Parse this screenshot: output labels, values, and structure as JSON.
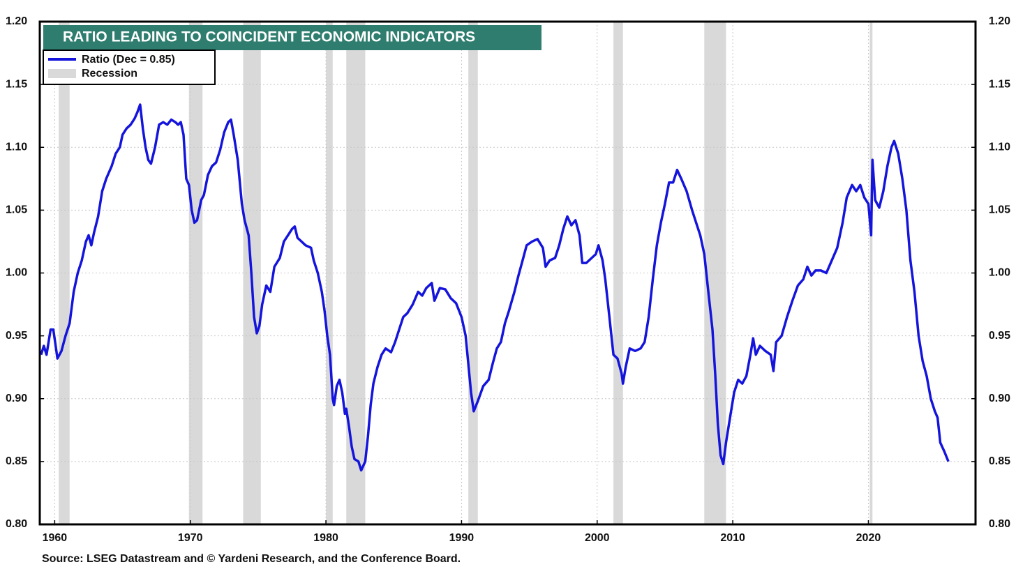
{
  "chart_data": {
    "type": "line",
    "title": "RATIO LEADING TO COINCIDENT ECONOMIC INDICATORS",
    "source": "Source: LSEG Datastream and © Yardeni Research, and the Conference Board.",
    "xlim": [
      1958.9,
      2027.9
    ],
    "xticks": [
      1960,
      1970,
      1980,
      1990,
      2000,
      2010,
      2020
    ],
    "ylim": [
      0.8,
      1.2
    ],
    "yticks": [
      {
        "value": 0.8,
        "label": "0.80"
      },
      {
        "value": 0.85,
        "label": "0.85"
      },
      {
        "value": 0.9,
        "label": "0.90"
      },
      {
        "value": 0.95,
        "label": "0.95"
      },
      {
        "value": 1.0,
        "label": "1.00"
      },
      {
        "value": 1.05,
        "label": "1.05"
      },
      {
        "value": 1.1,
        "label": "1.10"
      },
      {
        "value": 1.15,
        "label": "1.15"
      },
      {
        "value": 1.2,
        "label": "1.20"
      }
    ],
    "grid": true,
    "recession_name": "Recession",
    "recession_color": "#d9d9d9",
    "recessions": [
      [
        1960.3,
        1961.1
      ],
      [
        1969.9,
        1970.9
      ],
      [
        1973.9,
        1975.2
      ],
      [
        1980.0,
        1980.5
      ],
      [
        1981.5,
        1982.9
      ],
      [
        1990.5,
        1991.2
      ],
      [
        2001.2,
        2001.9
      ],
      [
        2007.9,
        2009.5
      ],
      [
        2020.1,
        2020.3
      ]
    ],
    "x": [
      1959.0,
      1959.2,
      1959.4,
      1959.7,
      1959.9,
      1960.1,
      1960.2,
      1960.5,
      1960.8,
      1961.1,
      1961.4,
      1961.7,
      1962.0,
      1962.3,
      1962.5,
      1962.7,
      1962.9,
      1963.2,
      1963.5,
      1963.8,
      1964.2,
      1964.5,
      1964.8,
      1965.0,
      1965.3,
      1965.6,
      1965.9,
      1966.1,
      1966.3,
      1966.5,
      1966.7,
      1966.9,
      1967.1,
      1967.4,
      1967.7,
      1968.0,
      1968.3,
      1968.6,
      1968.9,
      1969.1,
      1969.3,
      1969.5,
      1969.7,
      1969.9,
      1970.1,
      1970.3,
      1970.5,
      1970.8,
      1971.0,
      1971.3,
      1971.6,
      1971.9,
      1972.2,
      1972.5,
      1972.8,
      1973.0,
      1973.2,
      1973.5,
      1973.8,
      1974.0,
      1974.3,
      1974.5,
      1974.7,
      1974.9,
      1975.1,
      1975.3,
      1975.6,
      1975.9,
      1976.2,
      1976.6,
      1976.9,
      1977.2,
      1977.5,
      1977.7,
      1977.9,
      1978.2,
      1978.5,
      1978.9,
      1979.1,
      1979.4,
      1979.7,
      1979.9,
      1980.1,
      1980.3,
      1980.5,
      1980.6,
      1980.8,
      1981.0,
      1981.2,
      1981.4,
      1981.5,
      1981.7,
      1981.9,
      1982.1,
      1982.4,
      1982.6,
      1982.9,
      1983.1,
      1983.3,
      1983.5,
      1983.8,
      1984.1,
      1984.4,
      1984.8,
      1985.1,
      1985.4,
      1985.7,
      1986.0,
      1986.4,
      1986.8,
      1987.1,
      1987.4,
      1987.8,
      1988.0,
      1988.4,
      1988.8,
      1989.2,
      1989.6,
      1990.0,
      1990.3,
      1990.5,
      1990.7,
      1990.9,
      1991.2,
      1991.6,
      1992.0,
      1992.3,
      1992.6,
      1992.9,
      1993.2,
      1993.5,
      1993.9,
      1994.2,
      1994.5,
      1994.8,
      1995.2,
      1995.6,
      1996.0,
      1996.2,
      1996.5,
      1996.9,
      1997.2,
      1997.5,
      1997.8,
      1998.1,
      1998.4,
      1998.7,
      1998.9,
      1999.2,
      1999.6,
      1999.9,
      2000.1,
      2000.4,
      2000.6,
      2000.9,
      2001.2,
      2001.5,
      2001.8,
      2001.9,
      2002.1,
      2002.4,
      2002.8,
      2003.2,
      2003.5,
      2003.8,
      2004.1,
      2004.4,
      2004.7,
      2005.0,
      2005.3,
      2005.6,
      2005.9,
      2006.2,
      2006.6,
      2007.0,
      2007.3,
      2007.6,
      2007.9,
      2008.2,
      2008.5,
      2008.7,
      2008.9,
      2009.1,
      2009.3,
      2009.5,
      2009.8,
      2010.1,
      2010.4,
      2010.7,
      2011.0,
      2011.3,
      2011.5,
      2011.7,
      2012.0,
      2012.4,
      2012.8,
      2013.0,
      2013.2,
      2013.6,
      2014.0,
      2014.4,
      2014.8,
      2015.2,
      2015.5,
      2015.8,
      2016.1,
      2016.5,
      2016.9,
      2017.3,
      2017.7,
      2018.1,
      2018.4,
      2018.8,
      2019.1,
      2019.4,
      2019.7,
      2020.0,
      2020.2,
      2020.3,
      2020.5,
      2020.8,
      2021.1,
      2021.4,
      2021.7,
      2021.9,
      2022.2,
      2022.5,
      2022.8,
      2023.1,
      2023.4,
      2023.7,
      2024.0,
      2024.3,
      2024.6,
      2024.9,
      2025.1,
      2025.3,
      2025.6,
      2025.9
    ],
    "series": [
      {
        "name": "Ratio  (Dec = 0.85)",
        "color": "#1414dc",
        "values": [
          0.935,
          0.942,
          0.935,
          0.955,
          0.955,
          0.94,
          0.932,
          0.938,
          0.95,
          0.96,
          0.985,
          1.0,
          1.01,
          1.025,
          1.03,
          1.022,
          1.032,
          1.045,
          1.065,
          1.075,
          1.085,
          1.095,
          1.1,
          1.11,
          1.115,
          1.118,
          1.123,
          1.128,
          1.134,
          1.115,
          1.1,
          1.09,
          1.087,
          1.1,
          1.118,
          1.12,
          1.118,
          1.122,
          1.12,
          1.118,
          1.12,
          1.11,
          1.075,
          1.07,
          1.05,
          1.04,
          1.042,
          1.058,
          1.062,
          1.078,
          1.085,
          1.088,
          1.098,
          1.112,
          1.12,
          1.122,
          1.11,
          1.09,
          1.055,
          1.042,
          1.03,
          1.0,
          0.965,
          0.952,
          0.958,
          0.975,
          0.99,
          0.985,
          1.005,
          1.012,
          1.025,
          1.03,
          1.035,
          1.037,
          1.028,
          1.025,
          1.022,
          1.02,
          1.01,
          1.0,
          0.985,
          0.97,
          0.95,
          0.935,
          0.9,
          0.895,
          0.91,
          0.915,
          0.905,
          0.888,
          0.892,
          0.878,
          0.862,
          0.852,
          0.85,
          0.843,
          0.85,
          0.87,
          0.895,
          0.912,
          0.925,
          0.935,
          0.94,
          0.937,
          0.945,
          0.955,
          0.965,
          0.968,
          0.975,
          0.985,
          0.982,
          0.988,
          0.992,
          0.978,
          0.988,
          0.987,
          0.98,
          0.976,
          0.965,
          0.95,
          0.928,
          0.905,
          0.89,
          0.898,
          0.91,
          0.915,
          0.928,
          0.94,
          0.945,
          0.96,
          0.97,
          0.985,
          0.998,
          1.01,
          1.022,
          1.025,
          1.027,
          1.02,
          1.005,
          1.01,
          1.012,
          1.022,
          1.035,
          1.045,
          1.038,
          1.042,
          1.03,
          1.008,
          1.008,
          1.012,
          1.015,
          1.022,
          1.01,
          0.995,
          0.965,
          0.935,
          0.932,
          0.92,
          0.912,
          0.925,
          0.94,
          0.938,
          0.94,
          0.945,
          0.965,
          0.995,
          1.022,
          1.04,
          1.055,
          1.072,
          1.072,
          1.082,
          1.075,
          1.065,
          1.05,
          1.04,
          1.03,
          1.015,
          0.985,
          0.955,
          0.92,
          0.88,
          0.855,
          0.848,
          0.865,
          0.885,
          0.905,
          0.915,
          0.912,
          0.918,
          0.935,
          0.948,
          0.935,
          0.942,
          0.938,
          0.935,
          0.922,
          0.945,
          0.95,
          0.965,
          0.978,
          0.99,
          0.995,
          1.005,
          0.998,
          1.002,
          1.002,
          1.0,
          1.01,
          1.02,
          1.04,
          1.06,
          1.07,
          1.065,
          1.07,
          1.06,
          1.055,
          1.03,
          1.09,
          1.058,
          1.052,
          1.065,
          1.085,
          1.1,
          1.105,
          1.095,
          1.075,
          1.05,
          1.01,
          0.985,
          0.95,
          0.93,
          0.918,
          0.9,
          0.89,
          0.885,
          0.865,
          0.858,
          0.85
        ]
      }
    ]
  }
}
